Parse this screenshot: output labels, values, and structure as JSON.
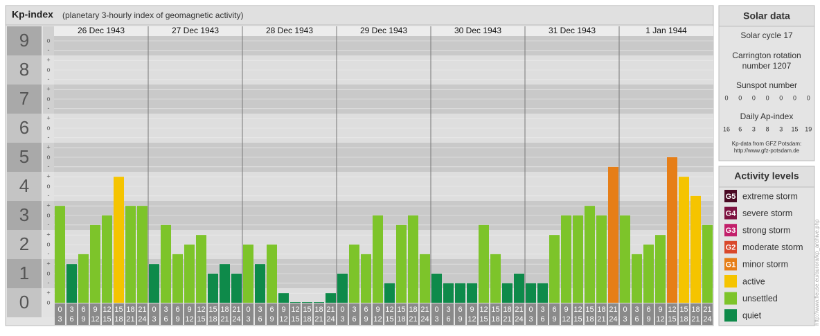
{
  "chart_data": {
    "type": "bar",
    "title": "Kp-index",
    "subtitle": "(planetary 3-hourly index of geomagnetic activity)",
    "ylim": [
      0,
      9.5
    ],
    "yticks": [
      0,
      1,
      2,
      3,
      4,
      5,
      6,
      7,
      8,
      9
    ],
    "minor_ticks": [
      {
        "value": 0,
        "label": "o"
      },
      {
        "value": 0.33,
        "label": "+"
      },
      {
        "value": 0.67,
        "label": "-"
      },
      {
        "value": 1,
        "label": "o"
      },
      {
        "value": 1.33,
        "label": "+"
      },
      {
        "value": 1.67,
        "label": "-"
      },
      {
        "value": 2,
        "label": "o"
      },
      {
        "value": 2.33,
        "label": "+"
      },
      {
        "value": 2.67,
        "label": "-"
      },
      {
        "value": 3,
        "label": "o"
      },
      {
        "value": 3.33,
        "label": "+"
      },
      {
        "value": 3.67,
        "label": "-"
      },
      {
        "value": 4,
        "label": "o"
      },
      {
        "value": 4.33,
        "label": "+"
      },
      {
        "value": 4.67,
        "label": "-"
      },
      {
        "value": 5,
        "label": "o"
      },
      {
        "value": 5.33,
        "label": "+"
      },
      {
        "value": 5.67,
        "label": "-"
      },
      {
        "value": 6,
        "label": "o"
      },
      {
        "value": 6.33,
        "label": "+"
      },
      {
        "value": 6.67,
        "label": "-"
      },
      {
        "value": 7,
        "label": "o"
      },
      {
        "value": 7.33,
        "label": "+"
      },
      {
        "value": 7.67,
        "label": "-"
      },
      {
        "value": 8,
        "label": "o"
      },
      {
        "value": 8.33,
        "label": "+"
      },
      {
        "value": 8.67,
        "label": "-"
      },
      {
        "value": 9,
        "label": "o"
      }
    ],
    "categories": [
      [
        "0",
        "3"
      ],
      [
        "3",
        "6"
      ],
      [
        "6",
        "9"
      ],
      [
        "9",
        "12"
      ],
      [
        "12",
        "15"
      ],
      [
        "15",
        "18"
      ],
      [
        "18",
        "21"
      ],
      [
        "21",
        "24"
      ]
    ],
    "groups": [
      {
        "label": "26 Dec 1943",
        "values": [
          3.33,
          1.33,
          1.67,
          2.67,
          3,
          4.33,
          3.33,
          3.33
        ],
        "colors": [
          "#7dc42a",
          "#0e8a4a",
          "#7dc42a",
          "#7dc42a",
          "#7dc42a",
          "#f5c400",
          "#7dc42a",
          "#7dc42a"
        ]
      },
      {
        "label": "27 Dec 1943",
        "values": [
          1.33,
          2.67,
          1.67,
          2,
          2.33,
          1,
          1.33,
          1
        ],
        "colors": [
          "#0e8a4a",
          "#7dc42a",
          "#7dc42a",
          "#7dc42a",
          "#7dc42a",
          "#0e8a4a",
          "#0e8a4a",
          "#0e8a4a"
        ]
      },
      {
        "label": "28 Dec 1943",
        "values": [
          2,
          1.33,
          2,
          0.33,
          0,
          0,
          0,
          0.33
        ],
        "colors": [
          "#7dc42a",
          "#0e8a4a",
          "#7dc42a",
          "#0e8a4a",
          "#0e8a4a",
          "#0e8a4a",
          "#0e8a4a",
          "#0e8a4a"
        ]
      },
      {
        "label": "29 Dec 1943",
        "values": [
          1,
          2,
          1.67,
          3,
          0.67,
          2.67,
          3,
          1.67
        ],
        "colors": [
          "#0e8a4a",
          "#7dc42a",
          "#7dc42a",
          "#7dc42a",
          "#0e8a4a",
          "#7dc42a",
          "#7dc42a",
          "#7dc42a"
        ]
      },
      {
        "label": "30 Dec 1943",
        "values": [
          1,
          0.67,
          0.67,
          0.67,
          2.67,
          1.67,
          0.67,
          1
        ],
        "colors": [
          "#0e8a4a",
          "#0e8a4a",
          "#0e8a4a",
          "#0e8a4a",
          "#7dc42a",
          "#7dc42a",
          "#0e8a4a",
          "#0e8a4a"
        ]
      },
      {
        "label": "31 Dec 1943",
        "values": [
          0.67,
          0.67,
          2.33,
          3,
          3,
          3.33,
          3,
          4.67
        ],
        "colors": [
          "#0e8a4a",
          "#0e8a4a",
          "#7dc42a",
          "#7dc42a",
          "#7dc42a",
          "#7dc42a",
          "#7dc42a",
          "#e67e17"
        ]
      },
      {
        "label": "1 Jan 1944",
        "values": [
          3,
          1.67,
          2,
          2.33,
          5,
          4.33,
          3.67,
          2.67
        ],
        "colors": [
          "#7dc42a",
          "#7dc42a",
          "#7dc42a",
          "#7dc42a",
          "#e67e17",
          "#f5c400",
          "#f5c400",
          "#7dc42a"
        ]
      }
    ]
  },
  "solar_data": {
    "title": "Solar data",
    "cycle": "Solar cycle 17",
    "carrington": [
      "Carrington rotation",
      "number 1207"
    ],
    "sunspot_title": "Sunspot number",
    "sunspot": [
      0,
      0,
      0,
      0,
      0,
      0,
      0
    ],
    "ap_title": "Daily Ap-index",
    "ap": [
      16,
      6,
      3,
      8,
      3,
      15,
      19
    ],
    "source": [
      "Kp-data from GFZ Potsdam:",
      "http://www.gfz-potsdam.de"
    ]
  },
  "activity_levels": {
    "title": "Activity levels",
    "items": [
      {
        "code": "G5",
        "label": "extreme storm",
        "color": "#4a0a24"
      },
      {
        "code": "G4",
        "label": "severe storm",
        "color": "#7d1240"
      },
      {
        "code": "G3",
        "label": "strong storm",
        "color": "#c21f6a"
      },
      {
        "code": "G2",
        "label": "moderate storm",
        "color": "#d9482b"
      },
      {
        "code": "G1",
        "label": "minor storm",
        "color": "#e67e17"
      },
      {
        "label": "active",
        "color": "#f5c400"
      },
      {
        "label": "unsettled",
        "color": "#7dc42a"
      },
      {
        "label": "quiet",
        "color": "#0e8a4a"
      }
    ]
  },
  "credit": "http://www.fleuse.eu/aurora/kp_archive.php"
}
